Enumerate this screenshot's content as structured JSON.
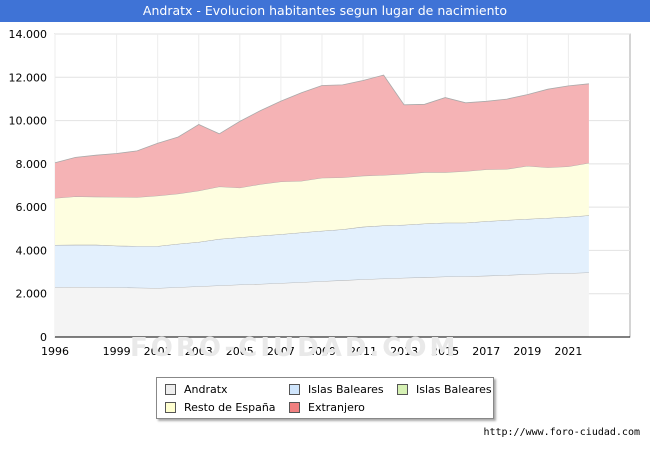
{
  "title": "Andratx - Evolucion habitantes segun lugar de nacimiento",
  "source": "http://www.foro-ciudad.com",
  "watermark": "FORO-CIUDAD.COM",
  "chart_data": {
    "type": "area",
    "stacked": true,
    "title": "Andratx - Evolucion habitantes segun lugar de nacimiento",
    "xlabel": "",
    "ylabel": "",
    "ylim": [
      0,
      14000
    ],
    "xlim": [
      1996,
      2024
    ],
    "grid": true,
    "legend_position": "bottom",
    "x_ticks": [
      1996,
      1999,
      2001,
      2003,
      2005,
      2007,
      2009,
      2011,
      2013,
      2015,
      2017,
      2019,
      2021
    ],
    "y_ticks": [
      0,
      2000,
      4000,
      6000,
      8000,
      10000,
      12000,
      14000
    ],
    "y_tick_labels": [
      "0",
      "2.000",
      "4.000",
      "6.000",
      "8.000",
      "10.000",
      "12.000",
      "14.000"
    ],
    "x": [
      1996,
      1997,
      1998,
      1999,
      2000,
      2001,
      2002,
      2003,
      2004,
      2005,
      2006,
      2007,
      2008,
      2009,
      2010,
      2011,
      2012,
      2013,
      2014,
      2015,
      2016,
      2017,
      2018,
      2019,
      2020,
      2021,
      2022
    ],
    "series": [
      {
        "name": "Andratx",
        "color": "#f4f4f4",
        "legend_color": "#eeeeee",
        "values": [
          2300,
          2310,
          2300,
          2290,
          2280,
          2260,
          2300,
          2340,
          2380,
          2420,
          2450,
          2490,
          2530,
          2580,
          2620,
          2660,
          2700,
          2730,
          2760,
          2790,
          2800,
          2830,
          2860,
          2900,
          2930,
          2950,
          2980
        ]
      },
      {
        "name": "Islas Baleares",
        "color": "#e3f0fd",
        "legend_color": "#cfe5fc",
        "values": [
          1950,
          1950,
          1960,
          1930,
          1920,
          1940,
          2000,
          2050,
          2150,
          2180,
          2230,
          2260,
          2300,
          2320,
          2350,
          2430,
          2450,
          2450,
          2480,
          2490,
          2480,
          2520,
          2540,
          2550,
          2570,
          2600,
          2640
        ]
      },
      {
        "name": "Islas Baleares",
        "color": "#eef9dd",
        "legend_color": "#d6f1b4",
        "values": [
          0,
          0,
          0,
          0,
          0,
          0,
          0,
          0,
          0,
          0,
          0,
          0,
          0,
          0,
          0,
          0,
          0,
          0,
          0,
          0,
          0,
          0,
          0,
          0,
          0,
          0,
          0
        ]
      },
      {
        "name": "Resto de España",
        "color": "#fefee0",
        "legend_color": "#ffffd0",
        "values": [
          2170,
          2230,
          2220,
          2250,
          2260,
          2330,
          2320,
          2370,
          2420,
          2300,
          2380,
          2430,
          2380,
          2450,
          2400,
          2360,
          2330,
          2350,
          2370,
          2330,
          2380,
          2390,
          2360,
          2450,
          2330,
          2330,
          2420
        ]
      },
      {
        "name": "Extranjero",
        "color": "#f5b3b5",
        "legend_color": "#f08080",
        "values": [
          1630,
          1810,
          1920,
          2010,
          2140,
          2420,
          2620,
          3060,
          2440,
          3060,
          3400,
          3720,
          4080,
          4270,
          4280,
          4400,
          4620,
          3200,
          3140,
          3450,
          3160,
          3150,
          3230,
          3300,
          3620,
          3720,
          3660
        ]
      }
    ]
  }
}
